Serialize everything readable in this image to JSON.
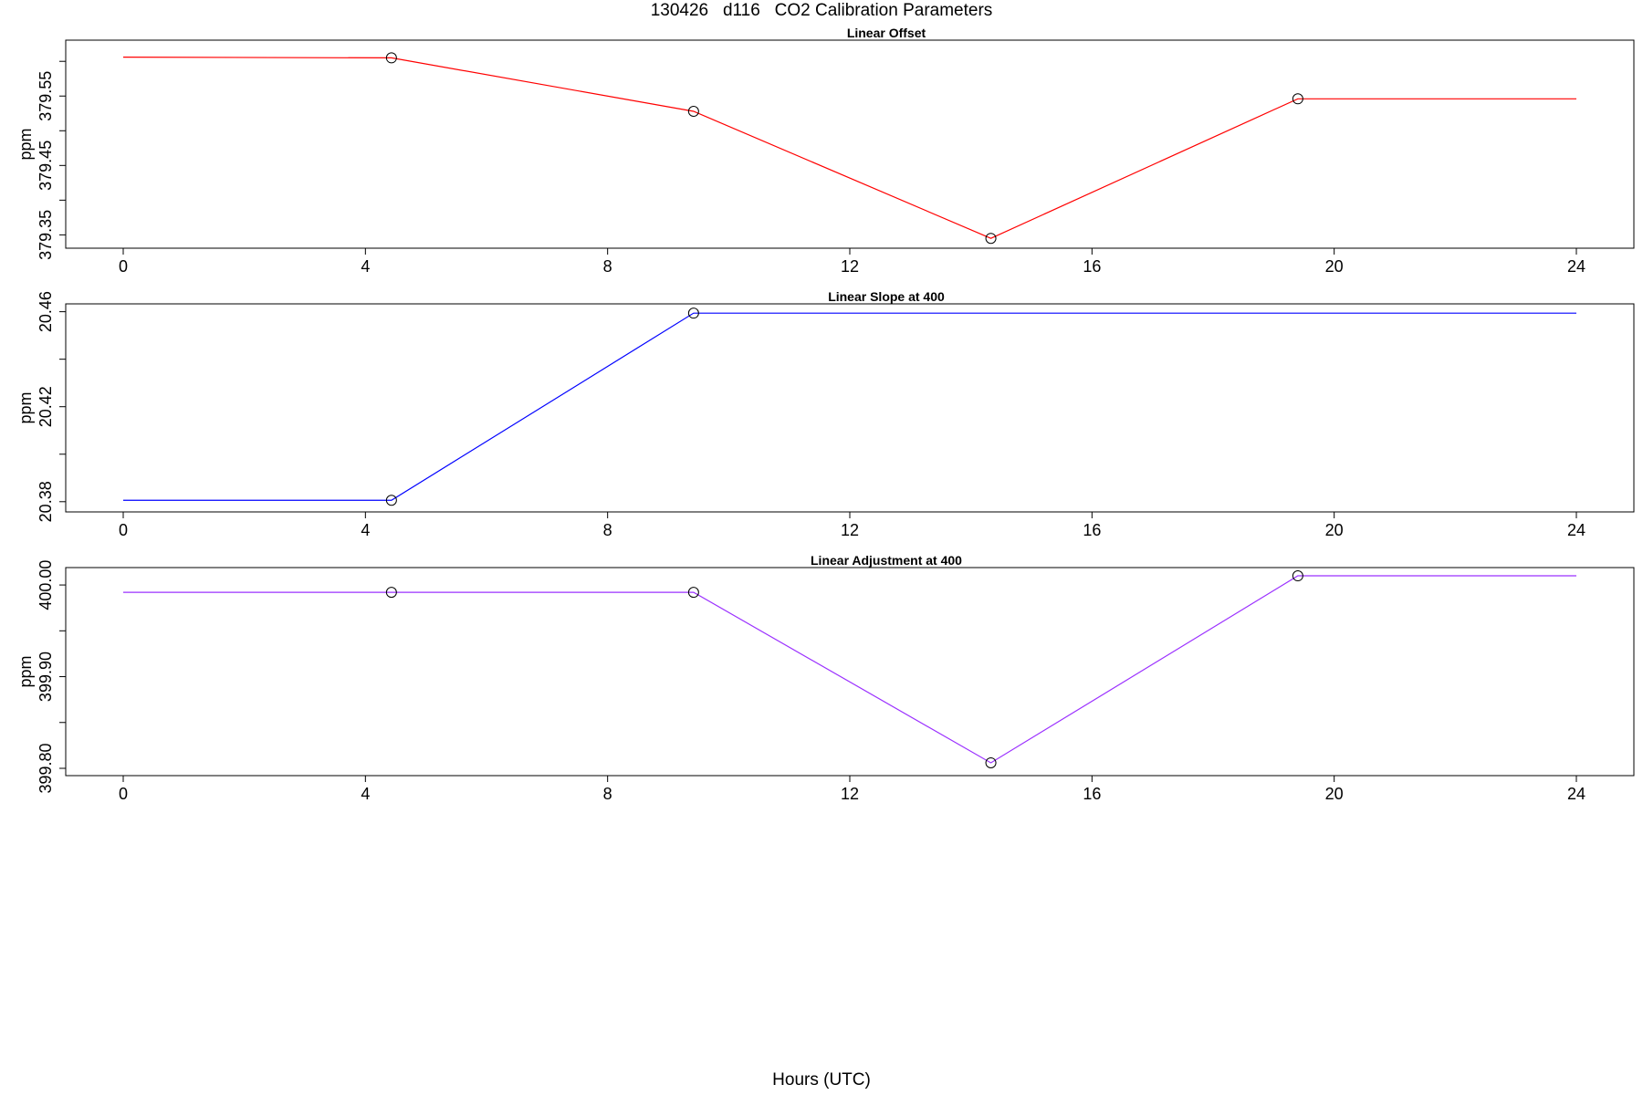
{
  "title": "130426   d116   CO2 Calibration Parameters",
  "xlabel": "Hours (UTC)",
  "chart_data": [
    {
      "type": "line",
      "title": "Linear Offset",
      "ylabel": "ppm",
      "color": "#ff0000",
      "xlim": [
        0,
        24
      ],
      "ylim": [
        379.34,
        379.62
      ],
      "xticks": [
        0,
        4,
        8,
        12,
        16,
        20,
        24
      ],
      "yticks": [
        379.35,
        379.4,
        379.45,
        379.5,
        379.55,
        379.6
      ],
      "ytick_labels": [
        "379.35",
        "",
        "379.45",
        "",
        "379.55",
        ""
      ],
      "points": [
        {
          "x": 4.43,
          "y": 379.605
        },
        {
          "x": 9.42,
          "y": 379.528
        },
        {
          "x": 14.33,
          "y": 379.345
        },
        {
          "x": 19.4,
          "y": 379.546
        }
      ],
      "line": {
        "x": [
          0,
          4.43,
          9.42,
          14.33,
          19.4,
          24
        ],
        "y": [
          379.606,
          379.605,
          379.528,
          379.345,
          379.546,
          379.546
        ]
      }
    },
    {
      "type": "line",
      "title": "Linear Slope at 400",
      "ylabel": "ppm",
      "color": "#0000ff",
      "xlim": [
        0,
        24
      ],
      "ylim": [
        20.378,
        20.461
      ],
      "xticks": [
        0,
        4,
        8,
        12,
        16,
        20,
        24
      ],
      "yticks": [
        20.38,
        20.4,
        20.42,
        20.44,
        20.46
      ],
      "ytick_labels": [
        "20.38",
        "",
        "20.42",
        "",
        "20.46"
      ],
      "points": [
        {
          "x": 4.43,
          "y": 20.3806
        },
        {
          "x": 9.42,
          "y": 20.4594
        }
      ],
      "line": {
        "x": [
          0,
          4.43,
          9.42,
          24
        ],
        "y": [
          20.3806,
          20.3806,
          20.4594,
          20.4594
        ]
      }
    },
    {
      "type": "line",
      "title": "Linear Adjustment at 400",
      "ylabel": "ppm",
      "color": "#9b30ff",
      "xlim": [
        0,
        24
      ],
      "ylim": [
        399.798,
        400.017
      ],
      "xticks": [
        0,
        4,
        8,
        12,
        16,
        20,
        24
      ],
      "yticks": [
        399.8,
        399.85,
        399.9,
        399.95,
        400.0
      ],
      "ytick_labels": [
        "399.80",
        "",
        "399.90",
        "",
        "400.00"
      ],
      "points": [
        {
          "x": 4.43,
          "y": 399.992
        },
        {
          "x": 9.42,
          "y": 399.992
        },
        {
          "x": 14.33,
          "y": 399.806
        },
        {
          "x": 19.4,
          "y": 400.01
        }
      ],
      "line": {
        "x": [
          0,
          4.43,
          9.42,
          14.33,
          19.4,
          24
        ],
        "y": [
          399.992,
          399.992,
          399.992,
          399.806,
          400.01,
          400.01
        ]
      }
    }
  ]
}
